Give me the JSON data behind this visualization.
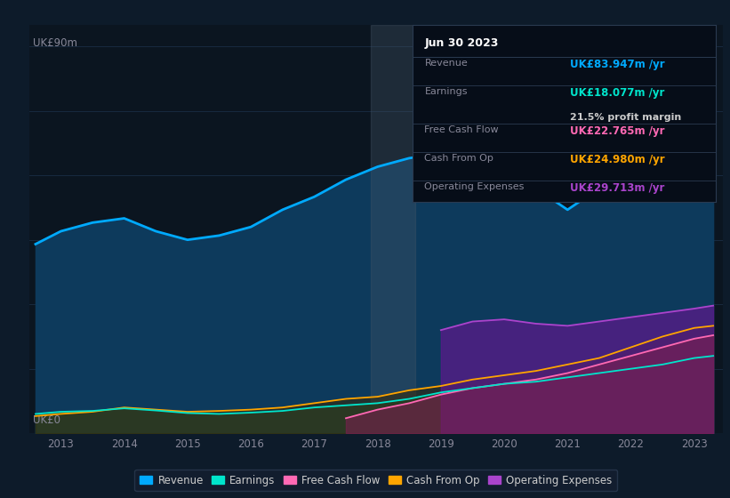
{
  "bg_color": "#0d1b2a",
  "plot_bg_color": "#0b1520",
  "grid_color": "#1a2d45",
  "years": [
    2012.6,
    2013.0,
    2013.5,
    2014.0,
    2014.5,
    2015.0,
    2015.5,
    2016.0,
    2016.5,
    2017.0,
    2017.5,
    2018.0,
    2018.5,
    2019.0,
    2019.5,
    2020.0,
    2020.5,
    2021.0,
    2021.5,
    2022.0,
    2022.5,
    2023.0,
    2023.3
  ],
  "revenue": [
    44,
    47,
    49,
    50,
    47,
    45,
    46,
    48,
    52,
    55,
    59,
    62,
    64,
    65,
    63,
    62,
    57,
    52,
    57,
    63,
    72,
    82,
    84
  ],
  "earnings": [
    4.5,
    5.0,
    5.2,
    5.8,
    5.3,
    4.7,
    4.5,
    4.8,
    5.2,
    6.0,
    6.5,
    7.0,
    8.0,
    9.5,
    10.5,
    11.5,
    12.0,
    13.0,
    14.0,
    15.0,
    16.0,
    17.5,
    18.0
  ],
  "free_cash_flow": [
    0,
    0,
    0,
    0,
    0,
    0,
    0,
    0,
    0,
    0,
    3.5,
    5.5,
    7.0,
    9.0,
    10.5,
    11.5,
    12.5,
    14.0,
    16.0,
    18.0,
    20.0,
    22.0,
    22.8
  ],
  "cash_from_op": [
    4.0,
    4.5,
    5.0,
    6.0,
    5.5,
    5.0,
    5.2,
    5.5,
    6.0,
    7.0,
    8.0,
    8.5,
    10.0,
    11.0,
    12.5,
    13.5,
    14.5,
    16.0,
    17.5,
    20.0,
    22.5,
    24.5,
    25.0
  ],
  "operating_expenses": [
    0,
    0,
    0,
    0,
    0,
    0,
    0,
    0,
    0,
    0,
    0,
    0,
    0,
    24.0,
    26.0,
    26.5,
    25.5,
    25.0,
    26.0,
    27.0,
    28.0,
    29.0,
    29.7
  ],
  "shade_start": 2017.9,
  "shade_end": 2018.6,
  "revenue_line_color": "#00aaff",
  "revenue_fill_color": "#0d3a5c",
  "earnings_line_color": "#00e5cc",
  "earnings_fill_color": "#1a4a48",
  "fcf_line_color": "#ff69b4",
  "fcf_fill_color": "#7a2050",
  "cashop_line_color": "#ffa500",
  "cashop_fill_color": "#3a2800",
  "opex_line_color": "#aa44cc",
  "opex_fill_color": "#5a1a8a",
  "info_box": {
    "date": "Jun 30 2023",
    "revenue_label": "Revenue",
    "revenue_val": "UK£83.947m /yr",
    "revenue_color": "#00aaff",
    "earnings_label": "Earnings",
    "earnings_val": "UK£18.077m /yr",
    "earnings_color": "#00e5cc",
    "margin_val": "21.5% profit margin",
    "fcf_label": "Free Cash Flow",
    "fcf_val": "UK£22.765m /yr",
    "fcf_color": "#ff69b4",
    "cashop_label": "Cash From Op",
    "cashop_val": "UK£24.980m /yr",
    "cashop_color": "#ffa500",
    "opex_label": "Operating Expenses",
    "opex_val": "UK£29.713m /yr",
    "opex_color": "#aa44cc"
  },
  "ylabel_top": "UK£90m",
  "ylabel_bottom": "UK£0",
  "ylim": [
    0,
    95
  ],
  "xlim": [
    2012.5,
    2023.45
  ],
  "xticks": [
    2013,
    2014,
    2015,
    2016,
    2017,
    2018,
    2019,
    2020,
    2021,
    2022,
    2023
  ],
  "yticks": [
    0,
    15,
    30,
    45,
    60,
    75,
    90
  ],
  "legend_items": [
    "Revenue",
    "Earnings",
    "Free Cash Flow",
    "Cash From Op",
    "Operating Expenses"
  ],
  "legend_colors": [
    "#00aaff",
    "#00e5cc",
    "#ff69b4",
    "#ffa500",
    "#aa44cc"
  ]
}
